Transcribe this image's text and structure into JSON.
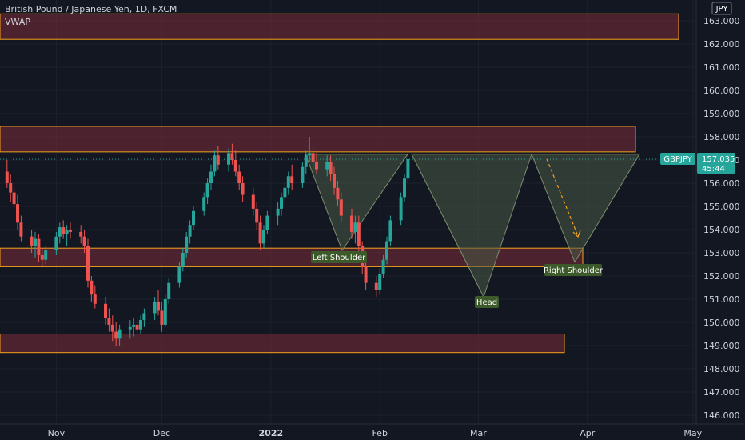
{
  "header": {
    "symbol_title": "British Pound / Japanese Yen, 1D, FXCM",
    "indicator": "VWAP",
    "currency_badge": "JPY"
  },
  "price_tag": {
    "symbol": "GBPJPY",
    "price": "157.035",
    "countdown": "45:44"
  },
  "annotations": {
    "left_shoulder": "Left Shoulder",
    "head": "Head",
    "right_shoulder": "Right Shoulder"
  },
  "colors": {
    "background": "#131722",
    "up_candle": "#26a69a",
    "down_candle": "#ef5350",
    "zone_fill": "#7a2b38",
    "zone_border": "#f7a21b",
    "pattern_fill": "#4a5a45",
    "label_fill": "#3d5a2a",
    "price_tag": "#26a69a",
    "text": "#d1d4dc"
  },
  "chart_data": {
    "type": "candlestick",
    "symbol": "GBPJPY",
    "timeframe": "1D",
    "ylim": [
      145.5,
      163.5
    ],
    "y_ticks": [
      "146.000",
      "147.000",
      "148.000",
      "149.000",
      "150.000",
      "151.000",
      "152.000",
      "153.000",
      "154.000",
      "155.000",
      "156.000",
      "157.000",
      "158.000",
      "159.000",
      "160.000",
      "161.000",
      "162.000",
      "163.000"
    ],
    "x_ticks": [
      "Nov",
      "Dec",
      "2022",
      "Feb",
      "Mar",
      "Apr",
      "May"
    ],
    "current_price": 157.035,
    "date_range": [
      "2021-10-07",
      "2022-03-18"
    ],
    "zones": [
      {
        "from": 162.2,
        "to": 163.3
      },
      {
        "from": 157.35,
        "to": 158.45
      },
      {
        "from": 152.4,
        "to": 153.2
      },
      {
        "from": 148.7,
        "to": 149.5
      }
    ],
    "pattern": {
      "name": "Inverse Head and Shoulders",
      "neckline": 157.25,
      "left_shoulder_low": 153.1,
      "head_low": 151.1,
      "right_shoulder_target": 152.6
    },
    "candles": [
      [
        156.8,
        157.6,
        156.1,
        157.3
      ],
      [
        157.3,
        158.1,
        156.9,
        157.7
      ],
      [
        157.7,
        158.2,
        157.2,
        157.4
      ],
      [
        157.4,
        157.6,
        156.5,
        156.7
      ],
      [
        156.7,
        157.2,
        156.0,
        157.0
      ],
      [
        157.0,
        157.3,
        155.9,
        156.2
      ],
      [
        156.2,
        156.8,
        155.6,
        156.5
      ],
      [
        156.5,
        157.0,
        155.8,
        156.0
      ],
      [
        156.0,
        156.4,
        155.2,
        155.6
      ],
      [
        155.6,
        155.9,
        154.9,
        155.1
      ],
      [
        155.1,
        155.5,
        154.0,
        154.3
      ],
      [
        154.3,
        154.6,
        153.5,
        153.7
      ],
      [
        153.7,
        154.0,
        153.0,
        153.3
      ],
      [
        153.3,
        153.9,
        152.8,
        153.6
      ],
      [
        153.6,
        153.8,
        152.6,
        152.9
      ],
      [
        152.9,
        153.2,
        152.4,
        152.7
      ],
      [
        152.7,
        153.3,
        152.5,
        153.1
      ],
      [
        153.1,
        153.9,
        152.9,
        153.7
      ],
      [
        153.7,
        154.3,
        153.4,
        154.1
      ],
      [
        154.1,
        154.4,
        153.6,
        153.8
      ],
      [
        153.8,
        154.2,
        153.3,
        154.0
      ],
      [
        154.0,
        154.3,
        153.6,
        153.9
      ],
      [
        153.9,
        154.2,
        153.4,
        153.7
      ],
      [
        153.7,
        154.0,
        153.0,
        153.3
      ],
      [
        153.3,
        153.6,
        151.5,
        151.8
      ],
      [
        151.8,
        152.0,
        150.9,
        151.2
      ],
      [
        151.2,
        151.6,
        150.6,
        150.8
      ],
      [
        150.8,
        151.1,
        149.9,
        150.2
      ],
      [
        150.2,
        150.6,
        149.6,
        149.9
      ],
      [
        149.9,
        150.3,
        149.2,
        149.6
      ],
      [
        149.6,
        150.0,
        149.0,
        149.3
      ],
      [
        149.3,
        149.9,
        149.0,
        149.7
      ],
      [
        149.7,
        150.1,
        149.3,
        149.8
      ],
      [
        149.8,
        150.2,
        149.4,
        149.9
      ],
      [
        149.9,
        150.2,
        149.5,
        149.7
      ],
      [
        149.7,
        150.3,
        149.5,
        150.1
      ],
      [
        150.1,
        150.6,
        149.8,
        150.4
      ],
      [
        150.4,
        151.1,
        150.1,
        150.9
      ],
      [
        150.9,
        151.4,
        150.3,
        150.5
      ],
      [
        150.5,
        150.9,
        149.6,
        149.9
      ],
      [
        149.9,
        151.2,
        149.8,
        151.0
      ],
      [
        151.0,
        151.9,
        150.8,
        151.7
      ],
      [
        151.7,
        152.6,
        151.5,
        152.4
      ],
      [
        152.4,
        153.2,
        152.2,
        153.0
      ],
      [
        153.0,
        153.9,
        152.8,
        153.7
      ],
      [
        153.7,
        154.4,
        153.4,
        154.2
      ],
      [
        154.2,
        155.0,
        154.0,
        154.8
      ],
      [
        154.8,
        155.6,
        154.6,
        155.4
      ],
      [
        155.4,
        156.2,
        155.1,
        156.0
      ],
      [
        156.0,
        156.8,
        155.7,
        156.5
      ],
      [
        156.5,
        157.4,
        156.3,
        157.2
      ],
      [
        157.2,
        157.6,
        156.6,
        156.8
      ],
      [
        156.8,
        157.5,
        156.5,
        157.3
      ],
      [
        157.3,
        157.7,
        156.8,
        157.0
      ],
      [
        157.0,
        157.4,
        156.3,
        156.5
      ],
      [
        156.5,
        156.8,
        155.7,
        156.0
      ],
      [
        156.0,
        156.3,
        155.2,
        155.5
      ],
      [
        155.5,
        155.8,
        154.6,
        154.9
      ],
      [
        154.9,
        155.2,
        154.0,
        154.3
      ],
      [
        154.3,
        154.6,
        153.1,
        153.4
      ],
      [
        153.4,
        154.2,
        153.2,
        154.0
      ],
      [
        154.0,
        154.8,
        153.8,
        154.6
      ],
      [
        154.6,
        155.2,
        154.2,
        154.9
      ],
      [
        154.9,
        155.6,
        154.6,
        155.4
      ],
      [
        155.4,
        156.0,
        155.1,
        155.8
      ],
      [
        155.8,
        156.5,
        155.5,
        156.3
      ],
      [
        156.3,
        156.8,
        155.7,
        156.0
      ],
      [
        156.0,
        156.9,
        155.8,
        156.7
      ],
      [
        156.7,
        157.4,
        156.4,
        157.2
      ],
      [
        157.2,
        158.0,
        156.9,
        157.3
      ],
      [
        157.3,
        157.6,
        156.6,
        156.9
      ],
      [
        156.9,
        157.3,
        156.4,
        156.6
      ],
      [
        156.6,
        157.2,
        156.3,
        156.9
      ],
      [
        156.9,
        157.2,
        156.1,
        156.4
      ],
      [
        156.4,
        156.7,
        155.5,
        155.8
      ],
      [
        155.8,
        156.1,
        155.0,
        155.3
      ],
      [
        155.3,
        155.6,
        154.3,
        154.6
      ],
      [
        154.6,
        154.9,
        153.6,
        153.9
      ],
      [
        153.9,
        154.6,
        153.4,
        154.3
      ],
      [
        154.3,
        154.6,
        153.0,
        153.3
      ],
      [
        153.3,
        153.5,
        152.1,
        152.4
      ],
      [
        152.4,
        152.7,
        151.4,
        151.7
      ],
      [
        151.7,
        152.0,
        151.1,
        151.4
      ],
      [
        151.4,
        152.3,
        151.2,
        152.1
      ],
      [
        152.1,
        152.9,
        151.9,
        152.7
      ],
      [
        152.7,
        153.7,
        152.5,
        153.5
      ],
      [
        153.5,
        154.6,
        153.3,
        154.4
      ],
      [
        154.4,
        155.6,
        154.2,
        155.4
      ],
      [
        155.4,
        156.4,
        155.2,
        156.2
      ],
      [
        156.2,
        157.3,
        156.0,
        157.035
      ]
    ]
  }
}
